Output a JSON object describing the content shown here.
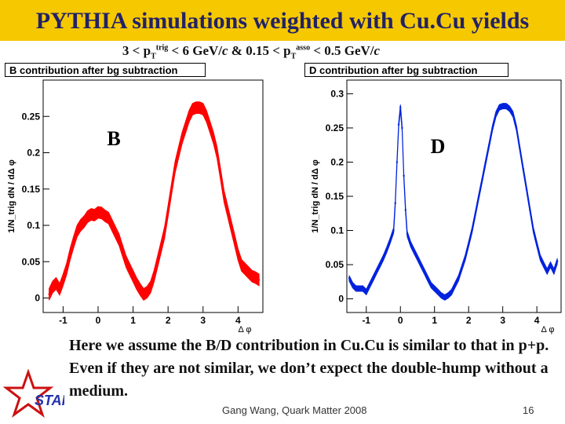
{
  "header": {
    "title": "PYTHIA simulations weighted with Cu.Cu yields",
    "subtitle_pre": "3 < p",
    "sub_T1": "T",
    "sup_trig": "trig",
    "subtitle_mid": " < 6 GeV/",
    "c1": "c",
    "subtitle_mid2": " & 0.15 < p",
    "sub_T2": "T",
    "sup_asso": "asso",
    "subtitle_post": " < 0.5 GeV/",
    "c2": "c"
  },
  "chart_data": [
    {
      "type": "line",
      "title": "B contribution after bg subtraction",
      "label": "B",
      "xlabel": "Δ φ",
      "ylabel": "1/N_trig dN / dΔ φ",
      "xlim": [
        -1.57,
        4.71
      ],
      "ylim": [
        -0.02,
        0.3
      ],
      "xticks": [
        -1,
        0,
        1,
        2,
        3,
        4
      ],
      "yticks": [
        0,
        0.05,
        0.1,
        0.15,
        0.2,
        0.25
      ],
      "series": [
        {
          "name": "B",
          "color": "#ff0000",
          "x": [
            -1.4,
            -1.3,
            -1.2,
            -1.1,
            -1.0,
            -0.9,
            -0.8,
            -0.7,
            -0.6,
            -0.5,
            -0.4,
            -0.3,
            -0.2,
            -0.1,
            0.0,
            0.1,
            0.2,
            0.3,
            0.4,
            0.5,
            0.6,
            0.7,
            0.8,
            0.9,
            1.0,
            1.1,
            1.2,
            1.3,
            1.4,
            1.5,
            1.6,
            1.7,
            1.8,
            1.9,
            2.0,
            2.1,
            2.2,
            2.3,
            2.4,
            2.5,
            2.6,
            2.7,
            2.8,
            2.9,
            3.0,
            3.1,
            3.2,
            3.3,
            3.4,
            3.5,
            3.6,
            3.7,
            3.8,
            3.9,
            4.0,
            4.1,
            4.2,
            4.3,
            4.4,
            4.5,
            4.6
          ],
          "y": [
            0.005,
            0.015,
            0.02,
            0.012,
            0.025,
            0.04,
            0.06,
            0.077,
            0.092,
            0.1,
            0.105,
            0.112,
            0.115,
            0.114,
            0.118,
            0.117,
            0.113,
            0.11,
            0.1,
            0.09,
            0.08,
            0.065,
            0.05,
            0.04,
            0.03,
            0.02,
            0.012,
            0.005,
            0.008,
            0.015,
            0.03,
            0.05,
            0.07,
            0.09,
            0.12,
            0.15,
            0.18,
            0.2,
            0.22,
            0.235,
            0.25,
            0.26,
            0.262,
            0.262,
            0.26,
            0.25,
            0.235,
            0.22,
            0.2,
            0.17,
            0.14,
            0.12,
            0.1,
            0.08,
            0.06,
            0.045,
            0.04,
            0.035,
            0.03,
            0.028,
            0.025
          ],
          "band": 0.008
        }
      ]
    },
    {
      "type": "line",
      "title": "D contribution  after bg subtraction",
      "label": "D",
      "xlabel": "Δ φ",
      "ylabel": "1/N_trig dN / dΔ φ",
      "xlim": [
        -1.57,
        4.71
      ],
      "ylim": [
        -0.02,
        0.32
      ],
      "xticks": [
        -1,
        0,
        1,
        2,
        3,
        4
      ],
      "yticks": [
        0,
        0.05,
        0.1,
        0.15,
        0.2,
        0.25,
        0.3
      ],
      "series": [
        {
          "name": "D",
          "color": "#0022dd",
          "x": [
            -1.5,
            -1.4,
            -1.3,
            -1.2,
            -1.1,
            -1.0,
            -0.9,
            -0.8,
            -0.7,
            -0.6,
            -0.5,
            -0.4,
            -0.3,
            -0.2,
            -0.15,
            -0.1,
            -0.05,
            0.0,
            0.05,
            0.1,
            0.15,
            0.2,
            0.3,
            0.4,
            0.5,
            0.6,
            0.7,
            0.8,
            0.9,
            1.0,
            1.1,
            1.2,
            1.3,
            1.4,
            1.5,
            1.6,
            1.7,
            1.8,
            1.9,
            2.0,
            2.1,
            2.2,
            2.3,
            2.4,
            2.5,
            2.6,
            2.7,
            2.8,
            2.9,
            3.0,
            3.1,
            3.2,
            3.3,
            3.4,
            3.5,
            3.6,
            3.7,
            3.8,
            3.9,
            4.0,
            4.1,
            4.2,
            4.3,
            4.4,
            4.5,
            4.6
          ],
          "y": [
            0.03,
            0.02,
            0.015,
            0.015,
            0.015,
            0.01,
            0.02,
            0.03,
            0.04,
            0.05,
            0.06,
            0.072,
            0.085,
            0.1,
            0.14,
            0.2,
            0.255,
            0.28,
            0.25,
            0.18,
            0.13,
            0.095,
            0.08,
            0.07,
            0.06,
            0.05,
            0.04,
            0.03,
            0.02,
            0.015,
            0.01,
            0.005,
            0.002,
            0.005,
            0.01,
            0.02,
            0.03,
            0.045,
            0.06,
            0.08,
            0.1,
            0.125,
            0.15,
            0.175,
            0.2,
            0.225,
            0.25,
            0.27,
            0.28,
            0.282,
            0.282,
            0.278,
            0.27,
            0.25,
            0.22,
            0.19,
            0.16,
            0.13,
            0.1,
            0.08,
            0.06,
            0.05,
            0.04,
            0.05,
            0.04,
            0.055
          ],
          "band": 0.004
        }
      ]
    }
  ],
  "body": {
    "text": "Here we assume the B/D contribution in Cu.Cu is similar to that in p+p. Even if they are not similar, we don’t expect the double-hump without a medium."
  },
  "footer": {
    "author": "Gang Wang, Quark Matter 2008",
    "page": "16",
    "logo_text": "STAR"
  },
  "colors": {
    "title_bar": "#f6c800",
    "title_text": "#222266",
    "b_series": "#ff0000",
    "d_series": "#0022dd",
    "logo": "#2233aa",
    "logo_star": "#cc1111"
  }
}
